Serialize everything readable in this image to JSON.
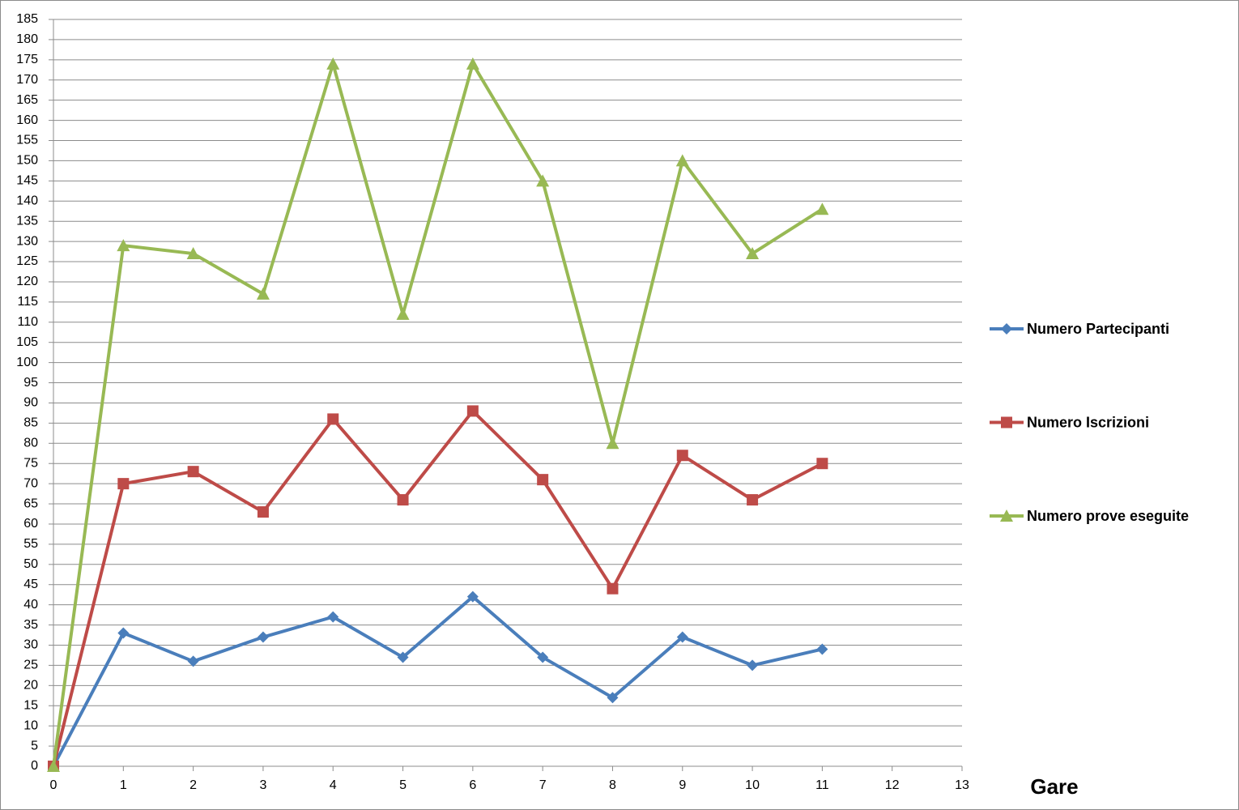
{
  "chart_data": {
    "type": "line",
    "x_label": "Gare",
    "x": [
      0,
      1,
      2,
      3,
      4,
      5,
      6,
      7,
      8,
      9,
      10,
      11
    ],
    "series": [
      {
        "name": "Numero Partecipanti",
        "color": "#4a7ebb",
        "marker": "diamond",
        "values": [
          0,
          33,
          26,
          32,
          37,
          27,
          42,
          27,
          17,
          32,
          25,
          29
        ]
      },
      {
        "name": "Numero Iscrizioni",
        "color": "#be4b48",
        "marker": "square",
        "values": [
          0,
          70,
          73,
          63,
          86,
          66,
          88,
          71,
          44,
          77,
          66,
          75
        ]
      },
      {
        "name": "Numero prove eseguite",
        "color": "#98b954",
        "marker": "triangle",
        "values": [
          0,
          129,
          127,
          117,
          174,
          112,
          174,
          145,
          80,
          150,
          127,
          138
        ]
      }
    ],
    "xlim": [
      0,
      13
    ],
    "xticks": [
      0,
      1,
      2,
      3,
      4,
      5,
      6,
      7,
      8,
      9,
      10,
      11,
      12,
      13
    ],
    "ylim": [
      0,
      185
    ],
    "yticks": [
      0,
      5,
      10,
      15,
      20,
      25,
      30,
      35,
      40,
      45,
      50,
      55,
      60,
      65,
      70,
      75,
      80,
      85,
      90,
      95,
      100,
      105,
      110,
      115,
      120,
      125,
      130,
      135,
      140,
      145,
      150,
      155,
      160,
      165,
      170,
      175,
      180,
      185
    ],
    "grid": true,
    "legend": "right"
  }
}
